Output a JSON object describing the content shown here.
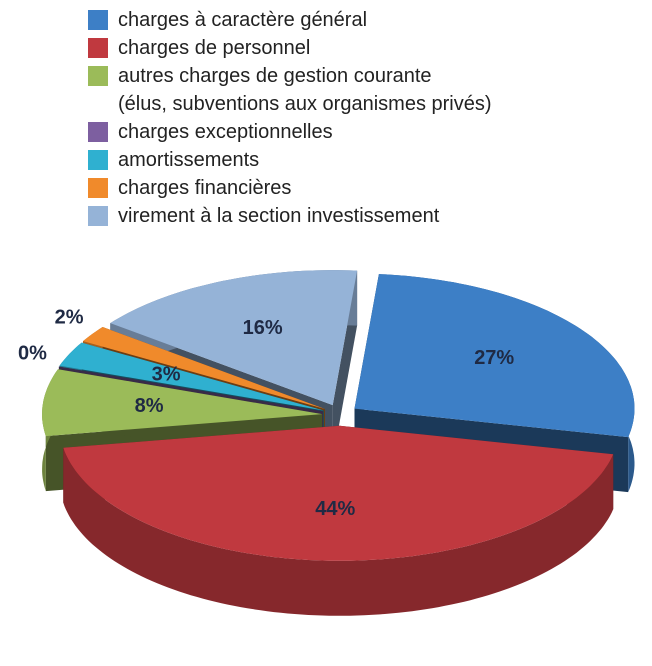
{
  "chart_data": {
    "type": "pie",
    "categories": [
      "charges à caractère général",
      "charges de personnel",
      "autres charges de gestion courante\n(élus, subventions aux organismes privés)",
      "charges exceptionnelles",
      "amortissements",
      "charges financières",
      "virement à la section investissement"
    ],
    "values": [
      27,
      44,
      8,
      0,
      3,
      2,
      16
    ],
    "value_labels": [
      "27%",
      "44%",
      "8%",
      "0%",
      "3%",
      "2%",
      "16%"
    ],
    "colors": [
      "#3d7fc6",
      "#c0393f",
      "#9bbb59",
      "#7d5fa0",
      "#2fb0d0",
      "#f08a2b",
      "#95b3d7"
    ]
  }
}
